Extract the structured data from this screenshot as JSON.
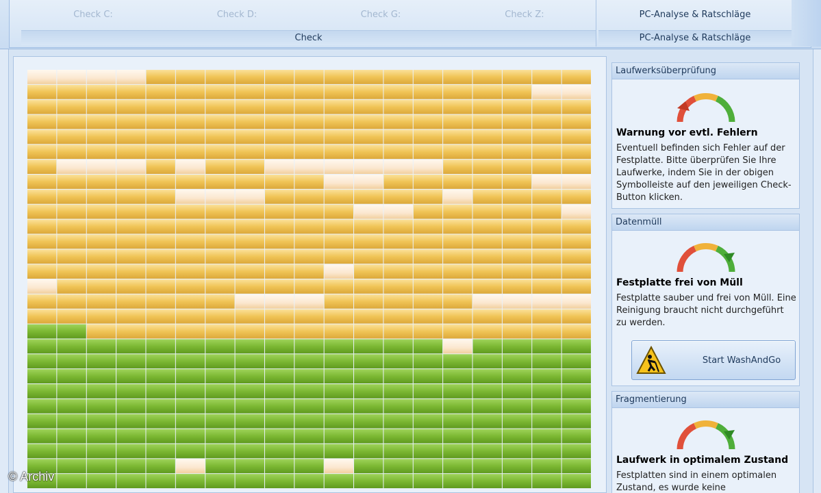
{
  "ribbon": {
    "check_buttons": [
      {
        "label": "Check C:",
        "enabled": false
      },
      {
        "label": "Check D:",
        "enabled": false
      },
      {
        "label": "Check G:",
        "enabled": false
      },
      {
        "label": "Check Z:",
        "enabled": false
      }
    ],
    "check_group_label": "Check",
    "pc_button_label": "PC-Analyse & Ratschläge",
    "pc_group_label": "PC-Analyse & Ratschläge"
  },
  "block_map": {
    "columns": 19,
    "rows": 28,
    "colors": {
      "used": "#f0c456",
      "free": "#7cb833",
      "empty": "#fbe7cf"
    },
    "used_rows_full": 17,
    "used_partial_row_start_col": 2,
    "empty_cells": [
      [
        0,
        0
      ],
      [
        0,
        1
      ],
      [
        0,
        2
      ],
      [
        0,
        3
      ],
      [
        1,
        17
      ],
      [
        1,
        18
      ],
      [
        6,
        1
      ],
      [
        6,
        2
      ],
      [
        6,
        3
      ],
      [
        6,
        5
      ],
      [
        6,
        8
      ],
      [
        6,
        9
      ],
      [
        6,
        10
      ],
      [
        6,
        11
      ],
      [
        6,
        12
      ],
      [
        6,
        13
      ],
      [
        7,
        10
      ],
      [
        7,
        11
      ],
      [
        7,
        17
      ],
      [
        7,
        18
      ],
      [
        8,
        5
      ],
      [
        8,
        6
      ],
      [
        8,
        7
      ],
      [
        8,
        14
      ],
      [
        9,
        11
      ],
      [
        9,
        12
      ],
      [
        9,
        18
      ],
      [
        13,
        10
      ],
      [
        14,
        0
      ],
      [
        15,
        7
      ],
      [
        15,
        8
      ],
      [
        15,
        9
      ],
      [
        15,
        15
      ],
      [
        15,
        16
      ],
      [
        15,
        17
      ],
      [
        15,
        18
      ],
      [
        18,
        14
      ],
      [
        26,
        5
      ],
      [
        26,
        10
      ]
    ]
  },
  "watermark": "© Archiv",
  "sidebar": {
    "drive_check": {
      "header": "Laufwerksüberprüfung",
      "gauge_level": "low",
      "title": "Warnung vor evtl. Fehlern",
      "text": "Eventuell befinden sich Fehler auf der Festplatte. Bitte überprüfen Sie Ihre Laufwerke, indem Sie in der obigen Symbolleiste auf den jeweiligen Check-Button klicken."
    },
    "junk": {
      "header": "Datenmüll",
      "gauge_level": "high",
      "title": "Festplatte frei von Müll",
      "text": "Festplatte sauber und frei von Müll. Eine Reinigung braucht nicht durchgeführt zu werden.",
      "button_label": "Start WashAndGo"
    },
    "fragmentation": {
      "header": "Fragmentierung",
      "gauge_level": "high",
      "title": "Laufwerk in optimalem Zustand",
      "text": "Festplatten sind in einem optimalen Zustand, es wurde keine"
    }
  }
}
